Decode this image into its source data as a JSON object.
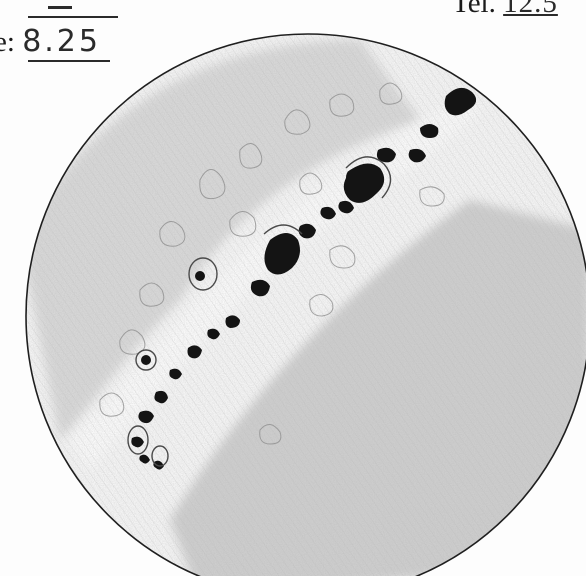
{
  "labels": {
    "left_prefix": "e:",
    "left_value": "8.25",
    "right_prefix": "Tel.",
    "right_value": "12.5"
  },
  "colors": {
    "ink": "#1b1b1b",
    "pencil": "#9a9a9a",
    "shade": "#c8c8c8"
  }
}
